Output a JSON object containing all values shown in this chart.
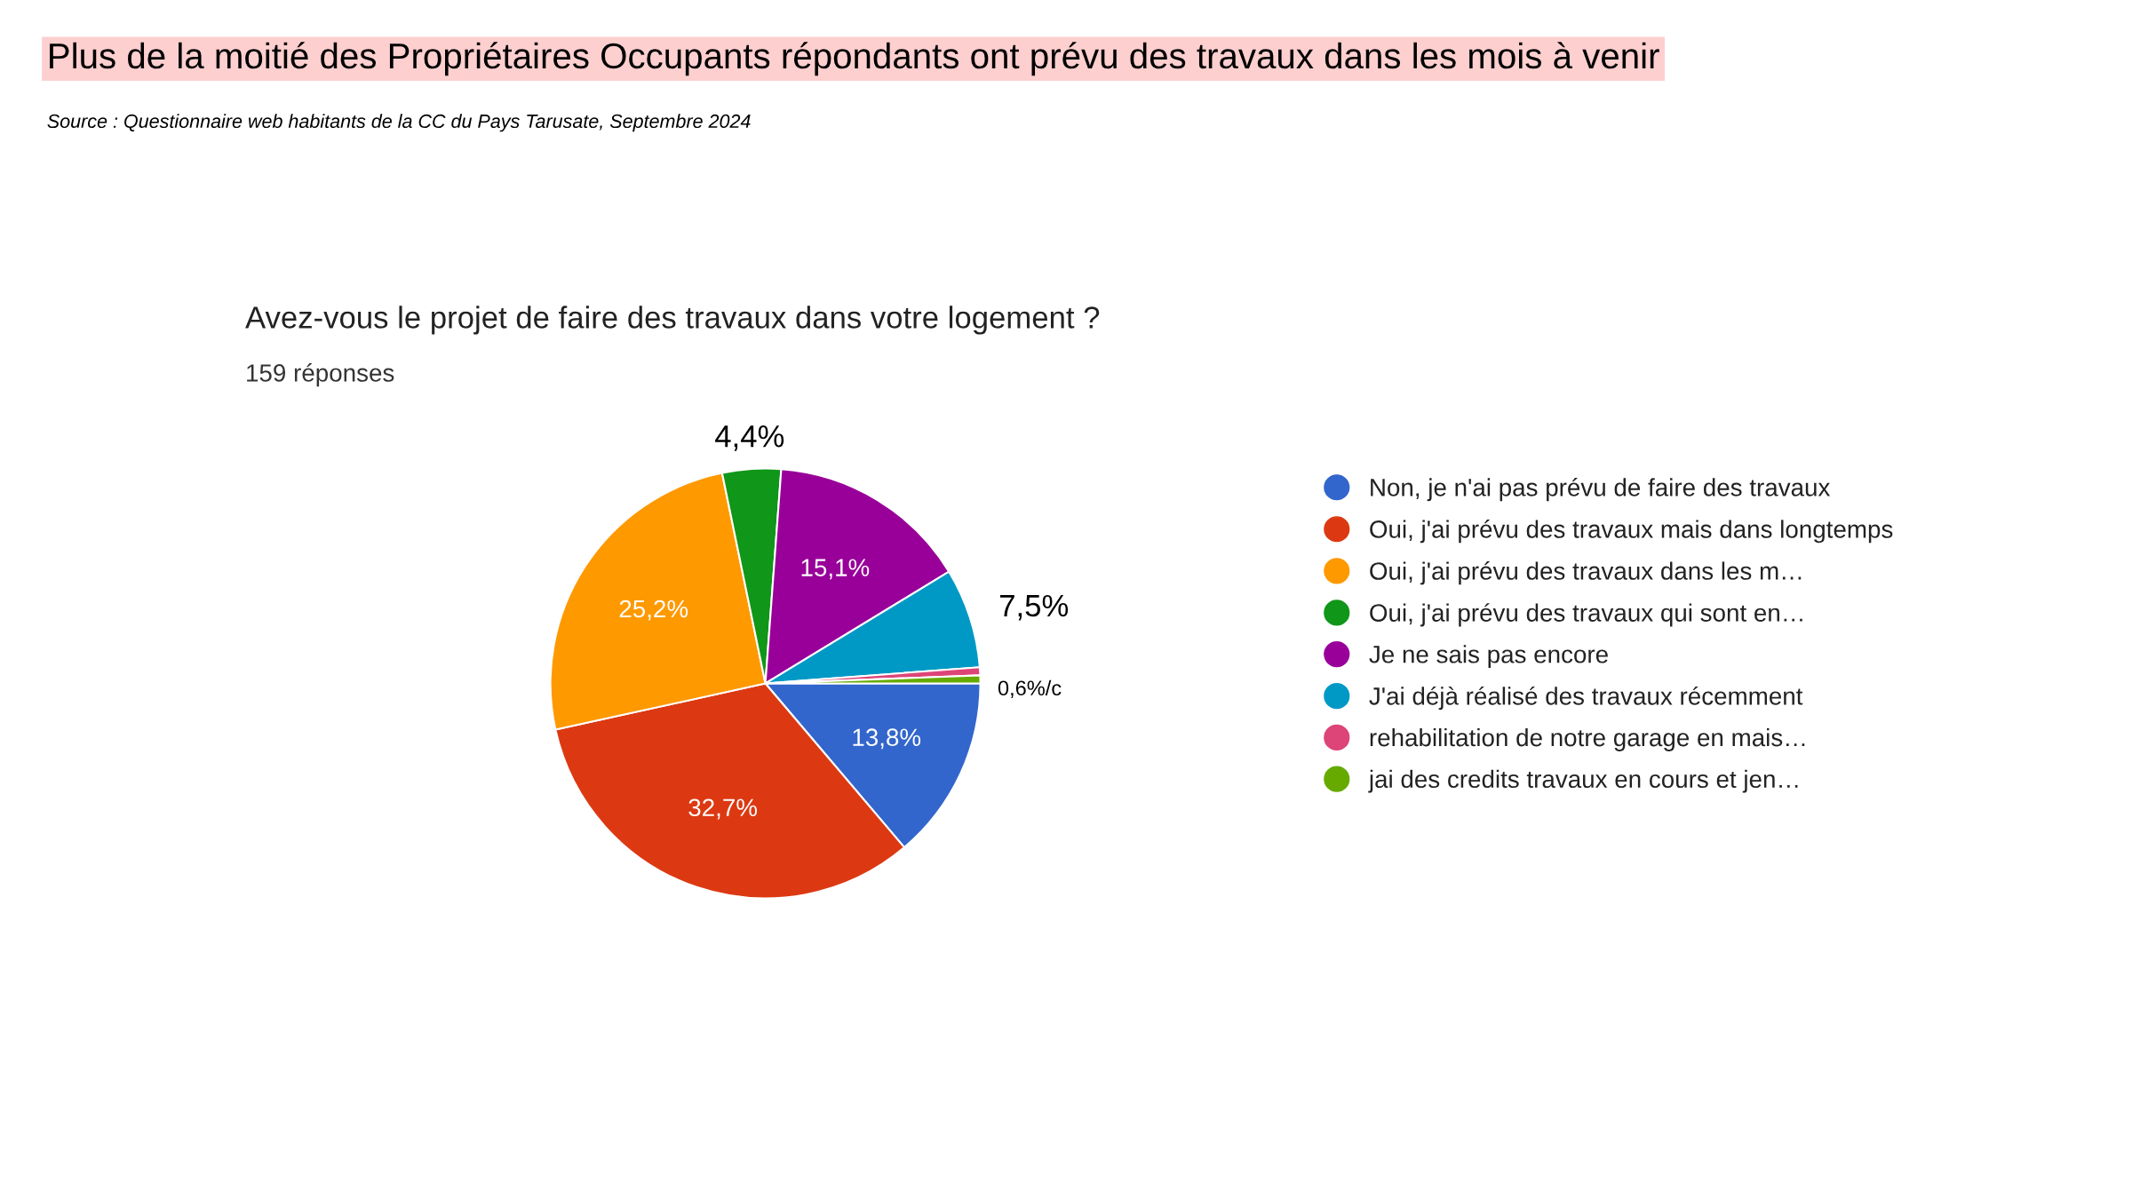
{
  "chart_data": {
    "type": "pie",
    "title": "Plus de la moitié des Propriétaires Occupants répondants ont prévu des travaux dans les mois à venir",
    "subtitle": "Avez-vous le projet de faire des travaux dans votre logement ?",
    "annotations": [
      "Source : Questionnaire web habitants de la CC du Pays Tarusate, Septembre 2024",
      "159 réponses"
    ],
    "categories": [
      "Non, je n'ai pas prévu de faire des travaux",
      "Oui, j'ai prévu des travaux mais dans longtemps",
      "Oui, j'ai prévu des travaux dans les m…",
      "Oui, j'ai prévu des travaux qui sont en…",
      "Je ne sais pas encore",
      "J'ai déjà réalisé des travaux récemment",
      "rehabilitation de notre garage en mais…",
      "jai des credits travaux en cours et jen…"
    ],
    "values": [
      13.8,
      32.7,
      25.2,
      4.4,
      15.1,
      7.5,
      0.6,
      0.6
    ],
    "colors": [
      "#3366cc",
      "#dc3912",
      "#ff9900",
      "#109618",
      "#990099",
      "#0099c6",
      "#dd4477",
      "#66aa00"
    ],
    "value_labels": [
      "13,8%",
      "32,7%",
      "25,2%",
      "4,4%",
      "15,1%",
      "7,5%",
      "0,6%/c",
      null
    ],
    "legend": "right"
  }
}
